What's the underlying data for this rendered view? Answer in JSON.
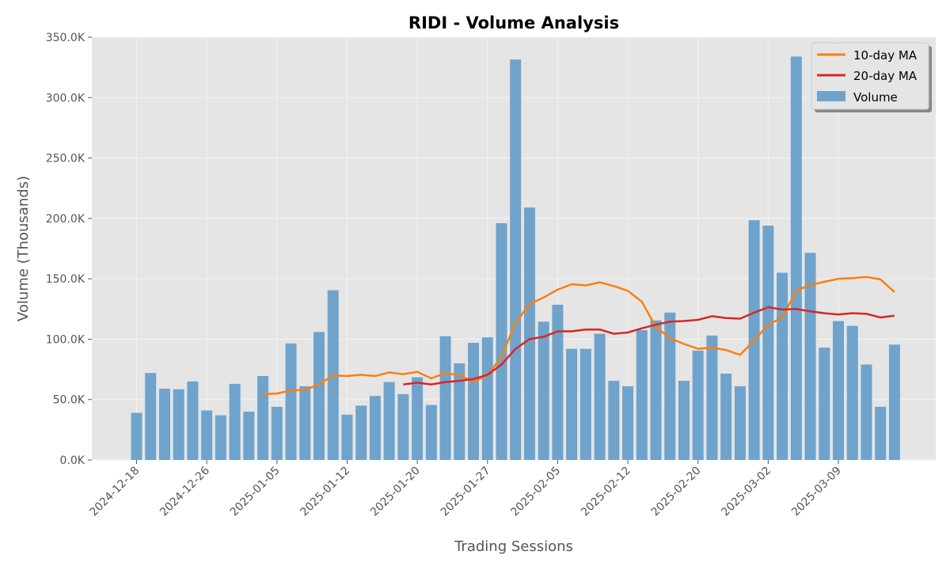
{
  "chart_data": {
    "type": "bar",
    "title": "RIDI - Volume Analysis",
    "xlabel": "Trading Sessions",
    "ylabel": "Volume (Thousands)",
    "ylim": [
      0,
      350000
    ],
    "y_ticks": [
      0,
      50000,
      100000,
      150000,
      200000,
      250000,
      300000,
      350000
    ],
    "y_tick_labels": [
      "0.0K",
      "50.0K",
      "100.0K",
      "150.0K",
      "200.0K",
      "250.0K",
      "300.0K",
      "350.0K"
    ],
    "x_tick_labels": [
      "2024-12-18",
      "2024-12-26",
      "2025-01-05",
      "2025-01-12",
      "2025-01-20",
      "2025-01-27",
      "2025-02-05",
      "2025-02-12",
      "2025-02-20",
      "2025-03-02",
      "2025-03-09"
    ],
    "grid": true,
    "legend_position": "top-right",
    "legend": [
      "10-day MA",
      "20-day MA",
      "Volume"
    ],
    "colors": {
      "volume": "#6fa3cb",
      "ma10": "#ff7f0e",
      "ma20": "#d62728",
      "plot_bg": "#e5e5e5"
    },
    "series": [
      {
        "name": "Volume",
        "kind": "bar",
        "values": [
          39000,
          72000,
          59000,
          58500,
          65000,
          41000,
          37000,
          63000,
          40000,
          69500,
          44000,
          96500,
          61000,
          106000,
          140500,
          37500,
          45000,
          53000,
          64500,
          54500,
          68500,
          45500,
          102500,
          80000,
          97000,
          101500,
          196000,
          331500,
          209000,
          114500,
          128500,
          92000,
          92000,
          104500,
          65500,
          61000,
          107500,
          115500,
          122000,
          65500,
          90500,
          103000,
          71500,
          61000,
          198500,
          194000,
          155000,
          334000,
          171500,
          93000,
          115000,
          111000,
          79000,
          44000,
          95500
        ]
      },
      {
        "name": "10-day MA",
        "kind": "line",
        "values": [
          null,
          null,
          null,
          null,
          null,
          null,
          null,
          null,
          null,
          54500,
          55000,
          57500,
          58000,
          62500,
          70000,
          69500,
          70500,
          69500,
          72500,
          71000,
          73000,
          67500,
          72000,
          70000,
          65000,
          70000,
          85500,
          113500,
          129000,
          134500,
          141000,
          145500,
          144500,
          147000,
          144000,
          140000,
          131000,
          110000,
          101000,
          96000,
          92000,
          93000,
          91000,
          87000,
          99000,
          112000,
          118000,
          140000,
          145000,
          147500,
          150000,
          150500,
          151500,
          149500,
          139000
        ]
      },
      {
        "name": "20-day MA",
        "kind": "line",
        "values": [
          null,
          null,
          null,
          null,
          null,
          null,
          null,
          null,
          null,
          null,
          null,
          null,
          null,
          null,
          null,
          null,
          null,
          null,
          null,
          62500,
          64000,
          62500,
          64500,
          65500,
          67000,
          70500,
          79000,
          92000,
          100000,
          102000,
          106500,
          106500,
          108000,
          108000,
          104500,
          105500,
          109000,
          112000,
          114500,
          115000,
          116000,
          119000,
          117500,
          117000,
          122000,
          126500,
          124500,
          125000,
          123000,
          121500,
          120500,
          121500,
          121000,
          118000,
          119500
        ]
      }
    ]
  }
}
